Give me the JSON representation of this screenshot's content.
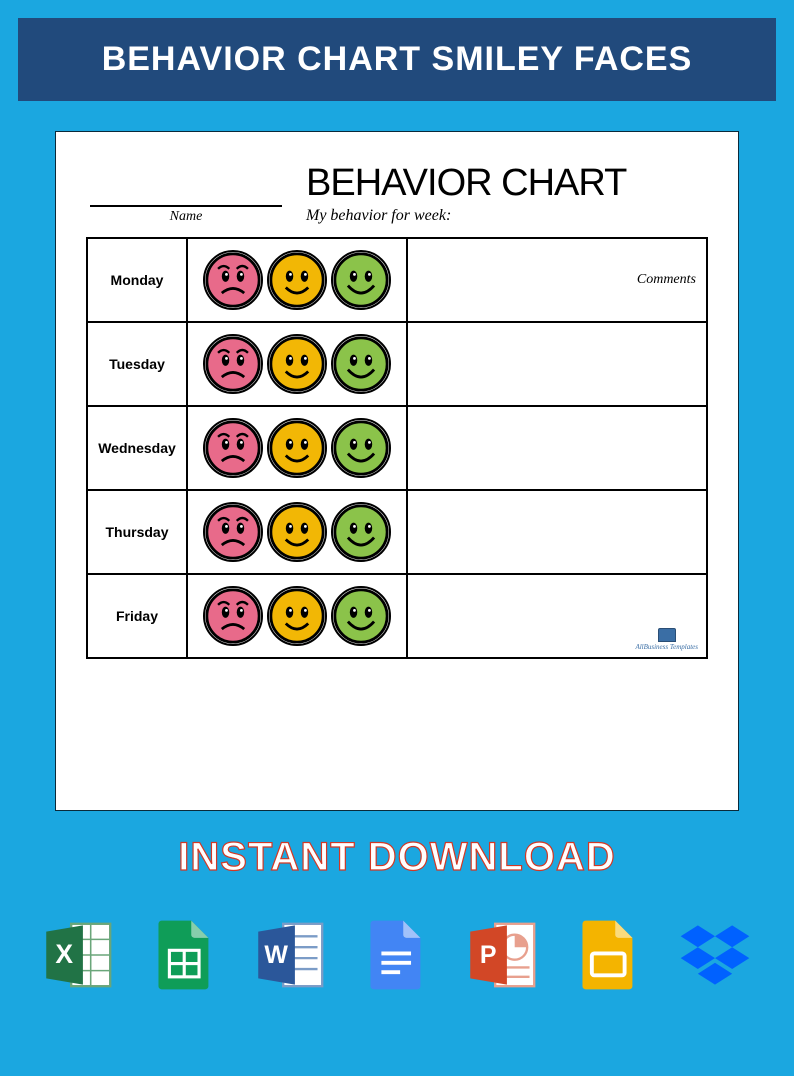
{
  "header": {
    "title": "BEHAVIOR CHART SMILEY FACES"
  },
  "document": {
    "name_label": "Name",
    "title": "BEHAVIOR CHART",
    "subtitle": "My behavior for week:",
    "comments_label": "Comments",
    "days": [
      "Monday",
      "Tuesday",
      "Wednesday",
      "Thursday",
      "Friday"
    ],
    "faces": {
      "sad": {
        "fill": "#e86a8a",
        "stroke": "#000000"
      },
      "neutral": {
        "fill": "#f2b705",
        "stroke": "#000000"
      },
      "happy": {
        "fill": "#8bc34a",
        "stroke": "#000000"
      }
    },
    "watermark": "AllBusiness Templates"
  },
  "download_text": "INSTANT DOWNLOAD",
  "app_icons": {
    "excel": {
      "bg": "#217346",
      "letter": "X"
    },
    "gsheets": {
      "bg": "#0f9d58"
    },
    "word": {
      "bg": "#2b579a",
      "letter": "W"
    },
    "gdocs": {
      "bg": "#4285f4"
    },
    "ppt": {
      "bg": "#d24726",
      "letter": "P"
    },
    "gslides": {
      "bg": "#f4b400"
    },
    "dropbox": {
      "bg": "#0061ff"
    }
  },
  "colors": {
    "page_bg": "#1ba7e0",
    "header_bar": "#214a7c",
    "doc_bg": "#ffffff",
    "border": "#000000"
  }
}
